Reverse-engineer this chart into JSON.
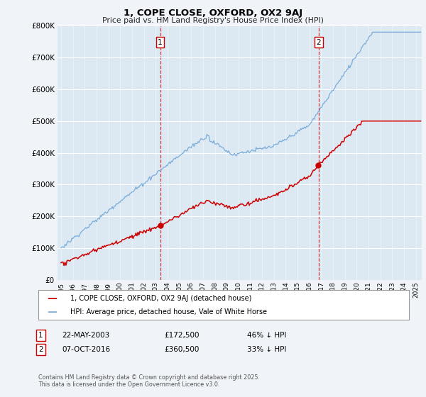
{
  "title": "1, COPE CLOSE, OXFORD, OX2 9AJ",
  "subtitle": "Price paid vs. HM Land Registry's House Price Index (HPI)",
  "hpi_color": "#7aaddb",
  "price_color": "#cc0000",
  "marker1_date_x": 2003.38,
  "marker2_date_x": 2016.77,
  "sale1_date": "22-MAY-2003",
  "sale1_price": "£172,500",
  "sale1_hpi": "46% ↓ HPI",
  "sale2_date": "07-OCT-2016",
  "sale2_price": "£360,500",
  "sale2_hpi": "33% ↓ HPI",
  "legend_line1": "1, COPE CLOSE, OXFORD, OX2 9AJ (detached house)",
  "legend_line2": "HPI: Average price, detached house, Vale of White Horse",
  "footer": "Contains HM Land Registry data © Crown copyright and database right 2025.\nThis data is licensed under the Open Government Licence v3.0.",
  "ylim_max": 800000,
  "ytick_step": 100000,
  "xlim_start": 1994.7,
  "xlim_end": 2025.5,
  "background_color": "#f0f4f8",
  "plot_bg_color": "#dce8f2"
}
